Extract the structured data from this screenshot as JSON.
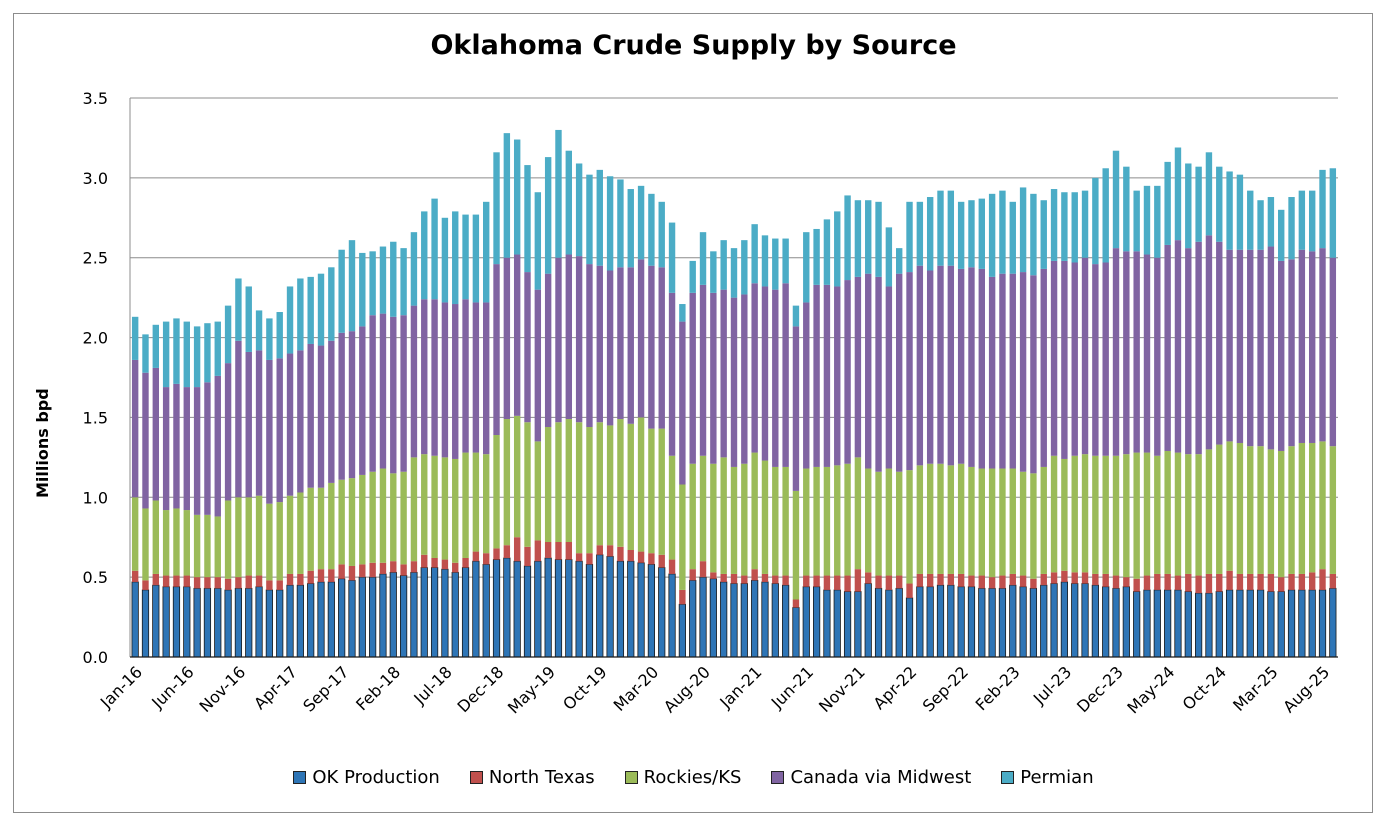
{
  "chart_data": {
    "type": "bar",
    "stacked": true,
    "title": "Oklahoma Crude Supply by Source",
    "xlabel": "",
    "ylabel": "Millions bpd",
    "ylim": [
      0,
      3.5
    ],
    "yticks": [
      "0.0",
      "0.5",
      "1.0",
      "1.5",
      "2.0",
      "2.5",
      "3.0",
      "3.5"
    ],
    "grid": true,
    "legend_position": "bottom",
    "tick_labels": [
      "Jan-16",
      "Jun-16",
      "Nov-16",
      "Apr-17",
      "Sep-17",
      "Feb-18",
      "Jul-18",
      "Dec-18",
      "May-19",
      "Oct-19",
      "Mar-20",
      "Aug-20",
      "Jan-21",
      "Jun-21",
      "Nov-21",
      "Apr-22",
      "Sep-22",
      "Feb-23",
      "Jul-23",
      "Dec-23",
      "May-24",
      "Oct-24",
      "Mar-25",
      "Aug-25"
    ],
    "series_names": [
      "OK Production",
      "North Texas",
      "Rockies/KS",
      "Canada via Midwest",
      "Permian"
    ],
    "colors": [
      "#2e75b6",
      "#c0504d",
      "#9bbb59",
      "#8064a2",
      "#4bacc6"
    ],
    "categories": [
      "Jan-16",
      "Feb-16",
      "Mar-16",
      "Apr-16",
      "May-16",
      "Jun-16",
      "Jul-16",
      "Aug-16",
      "Sep-16",
      "Oct-16",
      "Nov-16",
      "Dec-16",
      "Jan-17",
      "Feb-17",
      "Mar-17",
      "Apr-17",
      "May-17",
      "Jun-17",
      "Jul-17",
      "Aug-17",
      "Sep-17",
      "Oct-17",
      "Nov-17",
      "Dec-17",
      "Jan-18",
      "Feb-18",
      "Mar-18",
      "Apr-18",
      "May-18",
      "Jun-18",
      "Jul-18",
      "Aug-18",
      "Sep-18",
      "Oct-18",
      "Nov-18",
      "Dec-18",
      "Jan-19",
      "Feb-19",
      "Mar-19",
      "Apr-19",
      "May-19",
      "Jun-19",
      "Jul-19",
      "Aug-19",
      "Sep-19",
      "Oct-19",
      "Nov-19",
      "Dec-19",
      "Jan-20",
      "Feb-20",
      "Mar-20",
      "Apr-20",
      "May-20",
      "Jun-20",
      "Jul-20",
      "Aug-20",
      "Sep-20",
      "Oct-20",
      "Nov-20",
      "Dec-20",
      "Jan-21",
      "Feb-21",
      "Mar-21",
      "Apr-21",
      "May-21",
      "Jun-21",
      "Jul-21",
      "Aug-21",
      "Sep-21",
      "Oct-21",
      "Nov-21",
      "Dec-21",
      "Jan-22",
      "Feb-22",
      "Mar-22",
      "Apr-22",
      "May-22",
      "Jun-22",
      "Jul-22",
      "Aug-22",
      "Sep-22",
      "Oct-22",
      "Nov-22",
      "Dec-22",
      "Jan-23",
      "Feb-23",
      "Mar-23",
      "Apr-23",
      "May-23",
      "Jun-23",
      "Jul-23",
      "Aug-23",
      "Sep-23",
      "Oct-23",
      "Nov-23",
      "Dec-23",
      "Jan-24",
      "Feb-24",
      "Mar-24",
      "Apr-24",
      "May-24",
      "Jun-24",
      "Jul-24",
      "Aug-24",
      "Sep-24",
      "Oct-24",
      "Nov-24",
      "Dec-24",
      "Jan-25",
      "Feb-25",
      "Mar-25",
      "Apr-25",
      "May-25",
      "Jun-25",
      "Jul-25",
      "Aug-25",
      "Sep-25"
    ],
    "series": [
      {
        "name": "OK Production",
        "values": [
          0.47,
          0.42,
          0.45,
          0.44,
          0.44,
          0.44,
          0.43,
          0.43,
          0.43,
          0.42,
          0.43,
          0.43,
          0.44,
          0.42,
          0.42,
          0.45,
          0.45,
          0.46,
          0.47,
          0.47,
          0.49,
          0.48,
          0.5,
          0.5,
          0.52,
          0.53,
          0.51,
          0.53,
          0.56,
          0.56,
          0.55,
          0.53,
          0.56,
          0.6,
          0.58,
          0.61,
          0.62,
          0.6,
          0.57,
          0.6,
          0.62,
          0.61,
          0.61,
          0.6,
          0.58,
          0.64,
          0.63,
          0.6,
          0.6,
          0.59,
          0.58,
          0.56,
          0.52,
          0.33,
          0.48,
          0.5,
          0.49,
          0.47,
          0.46,
          0.46,
          0.48,
          0.47,
          0.46,
          0.45,
          0.31,
          0.44,
          0.44,
          0.42,
          0.42,
          0.41,
          0.41,
          0.46,
          0.43,
          0.42,
          0.43,
          0.37,
          0.44,
          0.44,
          0.45,
          0.45,
          0.44,
          0.44,
          0.43,
          0.43,
          0.43,
          0.45,
          0.44,
          0.43,
          0.45,
          0.46,
          0.47,
          0.46,
          0.46,
          0.45,
          0.44,
          0.43,
          0.44,
          0.41,
          0.42,
          0.42,
          0.42,
          0.42,
          0.41,
          0.4,
          0.4,
          0.41,
          0.42,
          0.42,
          0.42,
          0.42,
          0.41,
          0.41,
          0.42,
          0.42,
          0.42,
          0.42,
          0.43
        ]
      },
      {
        "name": "North Texas",
        "values": [
          0.07,
          0.06,
          0.07,
          0.07,
          0.07,
          0.07,
          0.07,
          0.07,
          0.07,
          0.07,
          0.07,
          0.08,
          0.07,
          0.06,
          0.06,
          0.07,
          0.07,
          0.08,
          0.08,
          0.08,
          0.09,
          0.09,
          0.08,
          0.09,
          0.07,
          0.07,
          0.07,
          0.07,
          0.08,
          0.06,
          0.06,
          0.06,
          0.06,
          0.06,
          0.07,
          0.07,
          0.08,
          0.15,
          0.12,
          0.13,
          0.1,
          0.11,
          0.11,
          0.05,
          0.07,
          0.06,
          0.07,
          0.09,
          0.07,
          0.07,
          0.07,
          0.08,
          0.09,
          0.09,
          0.07,
          0.1,
          0.04,
          0.05,
          0.06,
          0.05,
          0.07,
          0.05,
          0.05,
          0.06,
          0.05,
          0.07,
          0.07,
          0.09,
          0.09,
          0.1,
          0.14,
          0.07,
          0.08,
          0.09,
          0.08,
          0.09,
          0.08,
          0.08,
          0.07,
          0.07,
          0.08,
          0.07,
          0.08,
          0.07,
          0.08,
          0.07,
          0.07,
          0.06,
          0.07,
          0.07,
          0.07,
          0.07,
          0.07,
          0.07,
          0.08,
          0.08,
          0.06,
          0.08,
          0.09,
          0.1,
          0.1,
          0.09,
          0.11,
          0.11,
          0.12,
          0.11,
          0.12,
          0.1,
          0.1,
          0.1,
          0.11,
          0.09,
          0.1,
          0.1,
          0.11,
          0.13,
          0.09
        ]
      },
      {
        "name": "Rockies/KS",
        "values": [
          0.46,
          0.45,
          0.46,
          0.41,
          0.42,
          0.41,
          0.39,
          0.39,
          0.38,
          0.49,
          0.5,
          0.49,
          0.5,
          0.48,
          0.49,
          0.49,
          0.51,
          0.52,
          0.51,
          0.54,
          0.53,
          0.55,
          0.56,
          0.57,
          0.59,
          0.55,
          0.58,
          0.65,
          0.63,
          0.64,
          0.64,
          0.65,
          0.66,
          0.62,
          0.62,
          0.71,
          0.79,
          0.76,
          0.78,
          0.62,
          0.72,
          0.75,
          0.77,
          0.82,
          0.79,
          0.77,
          0.75,
          0.8,
          0.79,
          0.84,
          0.78,
          0.79,
          0.65,
          0.66,
          0.66,
          0.66,
          0.68,
          0.73,
          0.67,
          0.7,
          0.73,
          0.71,
          0.68,
          0.68,
          0.68,
          0.67,
          0.68,
          0.68,
          0.69,
          0.7,
          0.7,
          0.65,
          0.65,
          0.67,
          0.65,
          0.71,
          0.68,
          0.69,
          0.69,
          0.68,
          0.69,
          0.68,
          0.67,
          0.68,
          0.67,
          0.66,
          0.65,
          0.66,
          0.67,
          0.73,
          0.7,
          0.73,
          0.74,
          0.74,
          0.74,
          0.75,
          0.77,
          0.79,
          0.77,
          0.74,
          0.77,
          0.77,
          0.75,
          0.76,
          0.78,
          0.81,
          0.81,
          0.82,
          0.8,
          0.8,
          0.78,
          0.79,
          0.8,
          0.82,
          0.81,
          0.8,
          0.8
        ]
      },
      {
        "name": "Canada via Midwest",
        "values": [
          0.86,
          0.85,
          0.83,
          0.77,
          0.78,
          0.77,
          0.8,
          0.83,
          0.88,
          0.86,
          0.98,
          0.91,
          0.91,
          0.9,
          0.9,
          0.89,
          0.89,
          0.9,
          0.89,
          0.89,
          0.92,
          0.92,
          0.93,
          0.98,
          0.97,
          0.98,
          0.98,
          0.95,
          0.97,
          0.98,
          0.97,
          0.97,
          0.96,
          0.94,
          0.95,
          1.07,
          1.01,
          1.01,
          0.94,
          0.95,
          0.96,
          1.03,
          1.03,
          1.04,
          1.02,
          0.98,
          0.97,
          0.95,
          0.98,
          0.99,
          1.02,
          1.01,
          1.02,
          1.02,
          1.07,
          1.07,
          1.07,
          1.05,
          1.06,
          1.06,
          1.06,
          1.09,
          1.11,
          1.15,
          1.03,
          1.04,
          1.14,
          1.14,
          1.12,
          1.15,
          1.13,
          1.22,
          1.22,
          1.14,
          1.24,
          1.24,
          1.25,
          1.21,
          1.24,
          1.25,
          1.22,
          1.25,
          1.25,
          1.2,
          1.22,
          1.22,
          1.25,
          1.24,
          1.24,
          1.22,
          1.24,
          1.21,
          1.23,
          1.2,
          1.21,
          1.3,
          1.27,
          1.26,
          1.24,
          1.24,
          1.29,
          1.33,
          1.29,
          1.33,
          1.34,
          1.27,
          1.2,
          1.21,
          1.23,
          1.23,
          1.27,
          1.19,
          1.17,
          1.21,
          1.2,
          1.21,
          1.18
        ]
      },
      {
        "name": "Permian",
        "values": [
          0.27,
          0.24,
          0.27,
          0.41,
          0.41,
          0.41,
          0.38,
          0.37,
          0.34,
          0.36,
          0.39,
          0.41,
          0.25,
          0.26,
          0.29,
          0.42,
          0.45,
          0.42,
          0.45,
          0.46,
          0.52,
          0.57,
          0.46,
          0.4,
          0.42,
          0.47,
          0.42,
          0.46,
          0.55,
          0.63,
          0.53,
          0.58,
          0.53,
          0.55,
          0.63,
          0.7,
          0.78,
          0.72,
          0.67,
          0.61,
          0.73,
          0.8,
          0.65,
          0.58,
          0.56,
          0.6,
          0.59,
          0.55,
          0.49,
          0.46,
          0.45,
          0.41,
          0.44,
          0.11,
          0.2,
          0.33,
          0.26,
          0.31,
          0.31,
          0.34,
          0.37,
          0.32,
          0.32,
          0.28,
          0.13,
          0.44,
          0.35,
          0.41,
          0.47,
          0.53,
          0.48,
          0.46,
          0.47,
          0.37,
          0.16,
          0.44,
          0.4,
          0.46,
          0.47,
          0.47,
          0.42,
          0.42,
          0.44,
          0.52,
          0.52,
          0.45,
          0.53,
          0.51,
          0.43,
          0.45,
          0.43,
          0.44,
          0.42,
          0.54,
          0.59,
          0.61,
          0.53,
          0.38,
          0.43,
          0.45,
          0.52,
          0.58,
          0.53,
          0.47,
          0.52,
          0.47,
          0.49,
          0.47,
          0.37,
          0.31,
          0.31,
          0.32,
          0.39,
          0.37,
          0.38,
          0.49,
          0.56
        ]
      }
    ]
  }
}
